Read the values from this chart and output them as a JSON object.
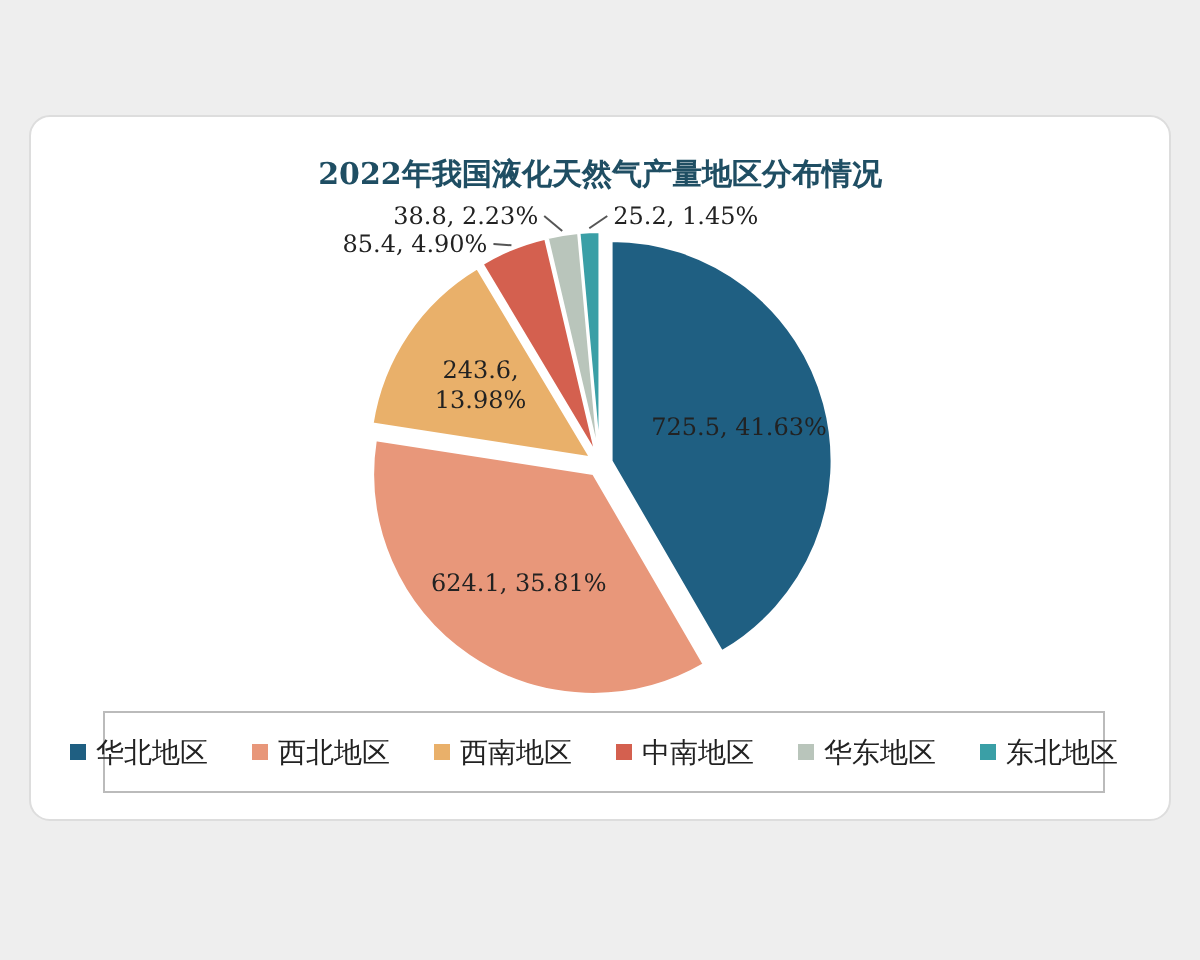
{
  "chart_data": {
    "type": "pie",
    "title": "2022年我国液化天然气产量地区分布情况",
    "categories": [
      "华北地区",
      "西北地区",
      "西南地区",
      "中南地区",
      "华东地区",
      "东北地区"
    ],
    "values": [
      725.5,
      624.1,
      243.6,
      85.4,
      38.8,
      25.2
    ],
    "value_labels": [
      "725.5, 41.63%",
      "624.1, 35.81%",
      "243.6, 13.98%",
      "85.4, 4.90%",
      "38.8, 2.23%",
      "25.2, 1.45%"
    ],
    "colors": [
      "#1f5f82",
      "#e8977a",
      "#e9b06a",
      "#d4604f",
      "#b9c5bb",
      "#3a9fa6"
    ],
    "legend": "bottom"
  }
}
